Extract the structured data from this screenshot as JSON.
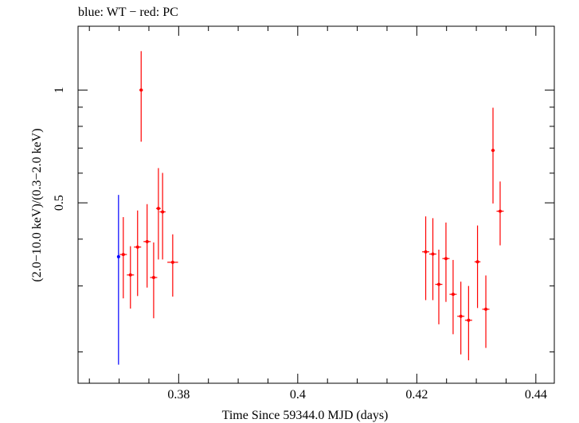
{
  "chart_data": {
    "type": "scatter",
    "title": "blue: WT − red: PC",
    "xlabel": "Time Since 59344.0 MJD (days)",
    "ylabel": "(2.0−10.0 keV)/(0.3−2.0 keV)",
    "xlim": [
      0.3631,
      0.4431
    ],
    "ylim": [
      0.0,
      1.25
    ],
    "x_ticks": [
      0.38,
      0.4,
      0.42,
      0.44
    ],
    "x_tick_labels": [
      "0.38",
      "0.4",
      "0.42",
      "0.44"
    ],
    "y_ticks": [
      0.5,
      1.0
    ],
    "y_tick_labels": [
      "0.5",
      "1"
    ],
    "log_y": true,
    "grid": false,
    "series": [
      {
        "name": "WT",
        "color": "#0000ff",
        "points": [
          {
            "x": 0.3699,
            "y": 0.359,
            "xerr": 0.0,
            "ylo": 0.185,
            "yhi": 0.525
          }
        ]
      },
      {
        "name": "PC",
        "color": "#ff0000",
        "points": [
          {
            "x": 0.3707,
            "y": 0.364,
            "xerr": 0.0006,
            "ylo": 0.278,
            "yhi": 0.458
          },
          {
            "x": 0.3719,
            "y": 0.321,
            "xerr": 0.0006,
            "ylo": 0.261,
            "yhi": 0.383
          },
          {
            "x": 0.3731,
            "y": 0.381,
            "xerr": 0.0006,
            "ylo": 0.282,
            "yhi": 0.477
          },
          {
            "x": 0.3737,
            "y": 1.0,
            "xerr": 0.0003,
            "ylo": 0.728,
            "yhi": 1.27
          },
          {
            "x": 0.3747,
            "y": 0.394,
            "xerr": 0.0006,
            "ylo": 0.297,
            "yhi": 0.496
          },
          {
            "x": 0.3758,
            "y": 0.316,
            "xerr": 0.0006,
            "ylo": 0.246,
            "yhi": 0.392
          },
          {
            "x": 0.3766,
            "y": 0.483,
            "xerr": 0.0004,
            "ylo": 0.353,
            "yhi": 0.619
          },
          {
            "x": 0.3773,
            "y": 0.473,
            "xerr": 0.0005,
            "ylo": 0.353,
            "yhi": 0.601
          },
          {
            "x": 0.379,
            "y": 0.347,
            "xerr": 0.0009,
            "ylo": 0.281,
            "yhi": 0.412
          },
          {
            "x": 0.4215,
            "y": 0.37,
            "xerr": 0.0006,
            "ylo": 0.275,
            "yhi": 0.46
          },
          {
            "x": 0.4227,
            "y": 0.365,
            "xerr": 0.0006,
            "ylo": 0.275,
            "yhi": 0.455
          },
          {
            "x": 0.4237,
            "y": 0.303,
            "xerr": 0.0006,
            "ylo": 0.237,
            "yhi": 0.375
          },
          {
            "x": 0.4249,
            "y": 0.355,
            "xerr": 0.0006,
            "ylo": 0.272,
            "yhi": 0.443
          },
          {
            "x": 0.4261,
            "y": 0.285,
            "xerr": 0.0006,
            "ylo": 0.223,
            "yhi": 0.352
          },
          {
            "x": 0.4274,
            "y": 0.249,
            "xerr": 0.0006,
            "ylo": 0.197,
            "yhi": 0.308
          },
          {
            "x": 0.4287,
            "y": 0.243,
            "xerr": 0.0006,
            "ylo": 0.19,
            "yhi": 0.3
          },
          {
            "x": 0.4302,
            "y": 0.348,
            "xerr": 0.0005,
            "ylo": 0.262,
            "yhi": 0.435
          },
          {
            "x": 0.4316,
            "y": 0.26,
            "xerr": 0.0006,
            "ylo": 0.205,
            "yhi": 0.32
          },
          {
            "x": 0.4328,
            "y": 0.69,
            "xerr": 0.0003,
            "ylo": 0.498,
            "yhi": 0.897
          },
          {
            "x": 0.434,
            "y": 0.475,
            "xerr": 0.0006,
            "ylo": 0.385,
            "yhi": 0.57
          }
        ]
      }
    ]
  }
}
